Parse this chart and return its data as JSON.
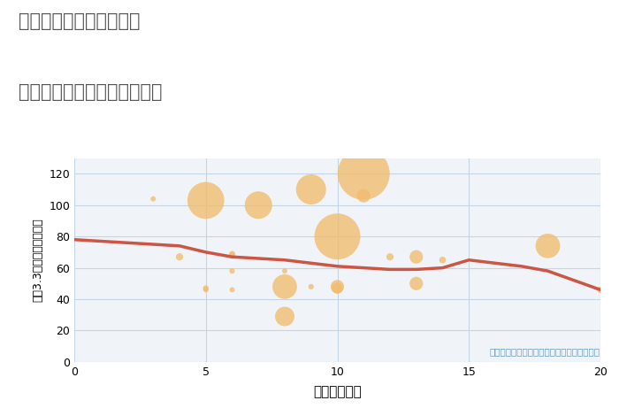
{
  "title_line1": "三重県四日市市十志町の",
  "title_line2": "駅距離別中古マンション価格",
  "xlabel": "駅距離（分）",
  "ylabel": "坪（3.3㎡）単価（万円）",
  "annotation": "円の大きさは、取引のあった物件面積を示す",
  "xlim": [
    0,
    20
  ],
  "ylim": [
    0,
    130
  ],
  "xticks": [
    0,
    5,
    10,
    15,
    20
  ],
  "yticks": [
    0,
    20,
    40,
    60,
    80,
    100,
    120
  ],
  "bubble_color": "#F0BC6E",
  "bubble_alpha": 0.78,
  "line_color": "#CC5544",
  "line_width": 2.5,
  "background_color": "#f0f4f8",
  "fig_background": "#ffffff",
  "grid_color": "#c5d5e5",
  "scatter_x": [
    3,
    4,
    5,
    5,
    5,
    6,
    6,
    6,
    6,
    7,
    8,
    8,
    8,
    9,
    9,
    10,
    10,
    10,
    11,
    11,
    12,
    13,
    13,
    14,
    18,
    20
  ],
  "scatter_y": [
    104,
    67,
    47,
    46,
    103,
    68,
    69,
    58,
    46,
    100,
    48,
    58,
    29,
    110,
    48,
    80,
    47,
    48,
    120,
    106,
    67,
    50,
    67,
    65,
    74,
    46
  ],
  "scatter_size": [
    18,
    35,
    22,
    18,
    900,
    30,
    22,
    20,
    18,
    500,
    400,
    18,
    250,
    600,
    20,
    1400,
    80,
    120,
    1800,
    120,
    35,
    120,
    120,
    30,
    400,
    30
  ],
  "line_x": [
    0,
    1,
    2,
    3,
    4,
    5,
    6,
    7,
    8,
    9,
    10,
    11,
    12,
    13,
    14,
    15,
    16,
    17,
    18,
    19,
    20
  ],
  "line_y": [
    78,
    77,
    76,
    75,
    74,
    70,
    67,
    66,
    65,
    63,
    61,
    60,
    59,
    59,
    60,
    65,
    63,
    61,
    58,
    52,
    46
  ]
}
